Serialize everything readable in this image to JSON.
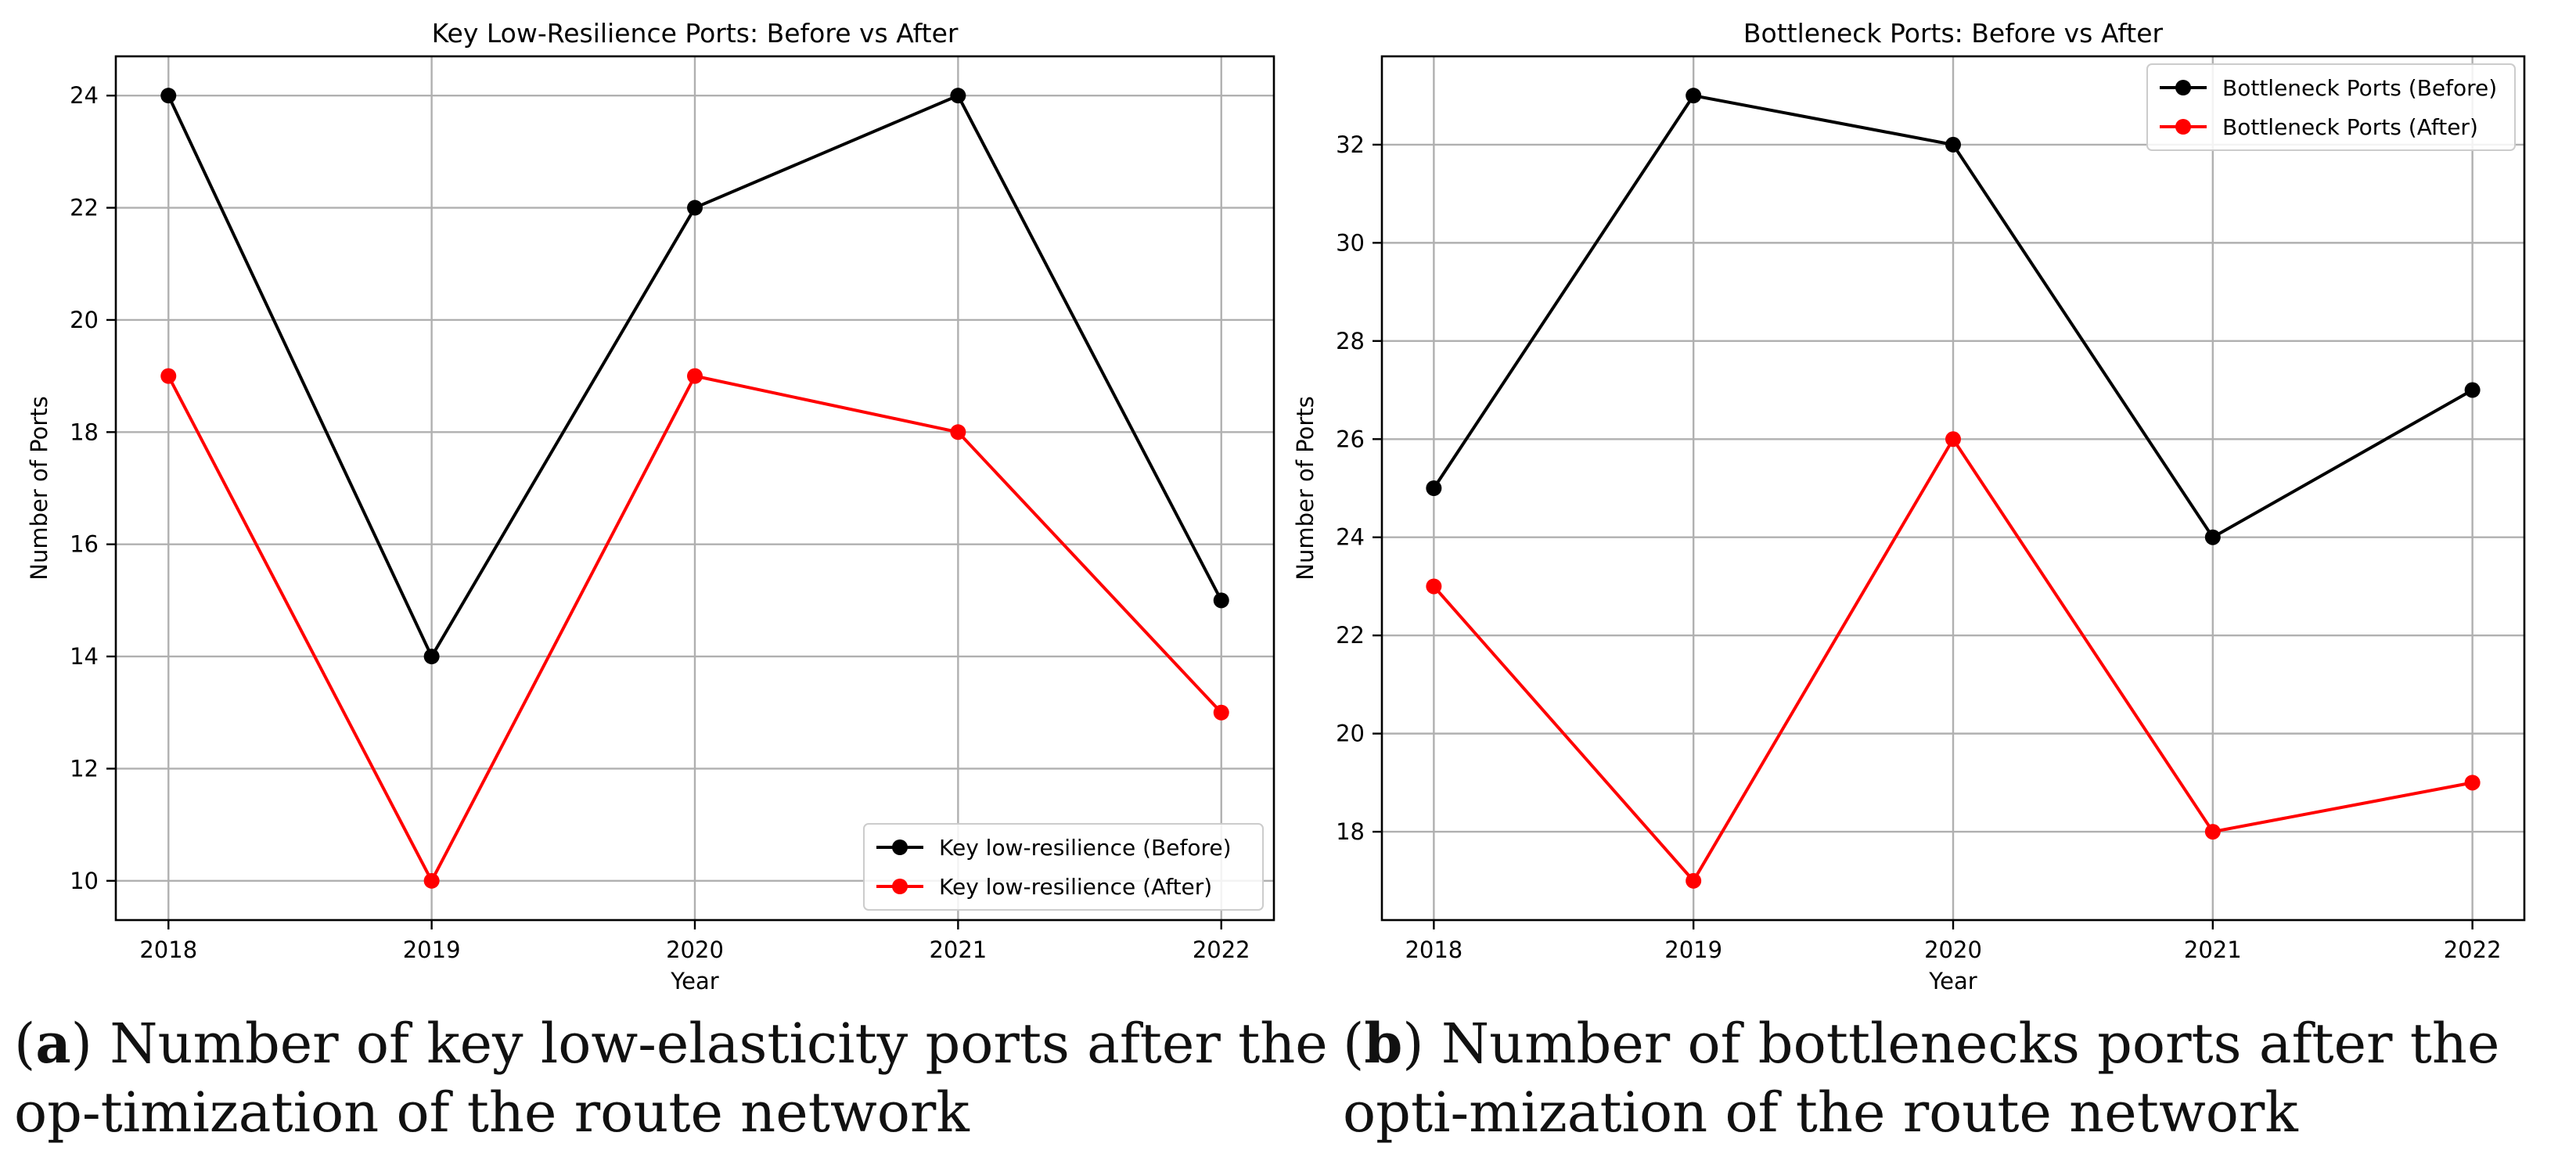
{
  "chart_data": [
    {
      "type": "line",
      "title": "Key Low-Resilience Ports: Before vs After",
      "xlabel": "Year",
      "ylabel": "Number of Ports",
      "x": [
        2018,
        2019,
        2020,
        2021,
        2022
      ],
      "xlim": [
        2017.8,
        2022.2
      ],
      "ylim": [
        9.3,
        24.7
      ],
      "yticks": [
        10,
        12,
        14,
        16,
        18,
        20,
        22,
        24
      ],
      "grid": true,
      "legend_position": "lower-right",
      "series": [
        {
          "name": "Key low-resilience (Before)",
          "color": "#000000",
          "values": [
            24,
            14,
            22,
            24,
            15
          ]
        },
        {
          "name": "Key low-resilience (After)",
          "color": "#ff0000",
          "values": [
            19,
            10,
            19,
            18,
            13
          ]
        }
      ]
    },
    {
      "type": "line",
      "title": "Bottleneck Ports: Before vs After",
      "xlabel": "Year",
      "ylabel": "Number of Ports",
      "x": [
        2018,
        2019,
        2020,
        2021,
        2022
      ],
      "xlim": [
        2017.8,
        2022.2
      ],
      "ylim": [
        16.2,
        33.8
      ],
      "yticks": [
        18,
        20,
        22,
        24,
        26,
        28,
        30,
        32
      ],
      "grid": true,
      "legend_position": "upper-right",
      "series": [
        {
          "name": "Bottleneck Ports (Before)",
          "color": "#000000",
          "values": [
            25,
            33,
            32,
            24,
            27
          ]
        },
        {
          "name": "Bottleneck Ports (After)",
          "color": "#ff0000",
          "values": [
            23,
            17,
            26,
            18,
            19
          ]
        }
      ]
    }
  ],
  "captions": [
    {
      "letter": "a",
      "text": "Number of key low-elasticity ports after the op-timization of the route network"
    },
    {
      "letter": "b",
      "text": "Number of bottlenecks ports after the opti-mization of the route network"
    }
  ]
}
